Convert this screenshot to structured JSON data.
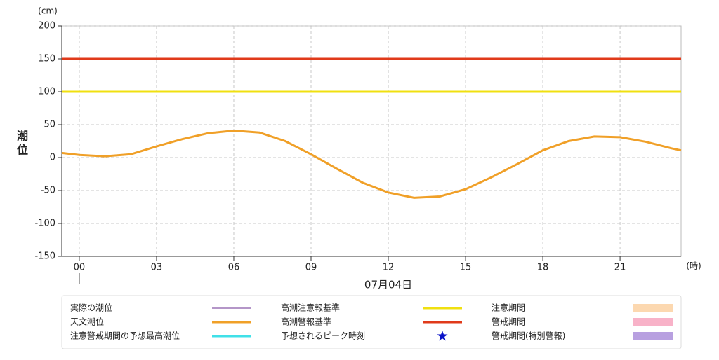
{
  "chart_data": {
    "type": "line",
    "y_unit": "(cm)",
    "y_label_top": "潮",
    "y_label_bottom": "位",
    "x_unit": "(時)",
    "date_label": "07月04日",
    "xlim": [
      -0.68,
      23.37
    ],
    "xticks": [
      {
        "value": 0,
        "label": "00"
      },
      {
        "value": 3,
        "label": "03"
      },
      {
        "value": 6,
        "label": "06"
      },
      {
        "value": 9,
        "label": "09"
      },
      {
        "value": 12,
        "label": "12"
      },
      {
        "value": 15,
        "label": "15"
      },
      {
        "value": 18,
        "label": "18"
      },
      {
        "value": 21,
        "label": "21"
      }
    ],
    "ylim": [
      -150,
      200
    ],
    "yticks": [
      -150,
      -100,
      -50,
      0,
      50,
      100,
      150,
      200
    ],
    "grid": true,
    "series": [
      {
        "name": "実際の潮位",
        "color": "#6a2c91",
        "symbol": "line"
      },
      {
        "name": "天文潮位",
        "color": "#f0a028",
        "symbol": "line",
        "x": [
          -0.68,
          0,
          1,
          2,
          3,
          4,
          5,
          6,
          7,
          8,
          9,
          10,
          11,
          12,
          13,
          14,
          15,
          16,
          17,
          18,
          19,
          20,
          21,
          22,
          23,
          23.37
        ],
        "values": [
          7,
          4,
          2,
          5,
          17,
          28,
          37,
          41,
          38,
          25,
          5,
          -17,
          -38,
          -53,
          -61,
          -59,
          -48,
          -30,
          -10,
          11,
          25,
          32,
          31,
          24,
          14,
          11
        ]
      },
      {
        "name": "注意警戒期間の予想最高潮位",
        "color": "#40e0e8",
        "symbol": "line"
      },
      {
        "name": "高潮注意報基準",
        "color": "#f0e010",
        "symbol": "line",
        "x": [
          -0.68,
          23.37
        ],
        "values": [
          100,
          100
        ]
      },
      {
        "name": "高潮警報基準",
        "color": "#e03a1a",
        "symbol": "line",
        "x": [
          -0.68,
          23.37
        ],
        "values": [
          150,
          150
        ]
      },
      {
        "name": "予想されるピーク時刻",
        "color": "#0a14c8",
        "symbol": "star"
      },
      {
        "name": "注意期間",
        "color": "#fcd8b0",
        "symbol": "band"
      },
      {
        "name": "警戒期間",
        "color": "#f8b2c8",
        "symbol": "band"
      },
      {
        "name": "警戒期間(特別警報)",
        "color": "#b8a0e0",
        "symbol": "band"
      }
    ]
  }
}
